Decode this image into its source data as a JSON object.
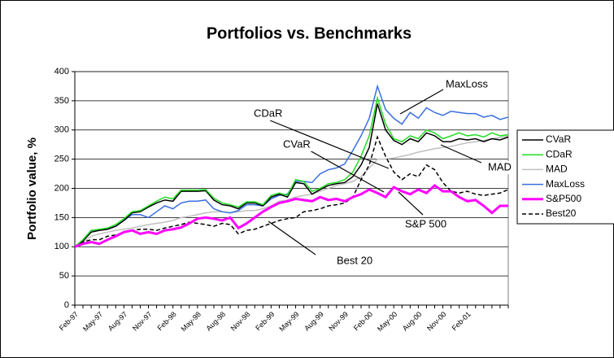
{
  "chart_data": {
    "type": "line",
    "title": "Portfolios vs. Benchmarks",
    "y_label": "Portfolio value, %",
    "categories": [
      "Feb-97",
      null,
      null,
      "May-97",
      null,
      null,
      "Aug-97",
      null,
      null,
      "Nov-97",
      null,
      null,
      "Feb-98",
      null,
      null,
      "May-98",
      null,
      null,
      "Aug-98",
      null,
      null,
      "Nov-98",
      null,
      null,
      "Feb-99",
      null,
      null,
      "May-99",
      null,
      null,
      "Aug-99",
      null,
      null,
      "Nov-99",
      null,
      null,
      "Feb-00",
      null,
      null,
      "May-00",
      null,
      null,
      "Aug-00",
      null,
      null,
      "Nov-00",
      null,
      null,
      "Feb-01",
      null,
      null,
      null,
      null,
      null
    ],
    "series": [
      {
        "name": "CVaR",
        "color": "#000000",
        "values": [
          100,
          110,
          125,
          128,
          130,
          135,
          145,
          158,
          160,
          168,
          175,
          180,
          178,
          195,
          195,
          195,
          196,
          180,
          172,
          170,
          165,
          175,
          175,
          170,
          185,
          190,
          185,
          210,
          208,
          190,
          198,
          205,
          208,
          210,
          220,
          240,
          270,
          345,
          300,
          282,
          275,
          285,
          280,
          295,
          290,
          280,
          280,
          285,
          283,
          285,
          280,
          285,
          283,
          288
        ]
      },
      {
        "name": "CDaR",
        "color": "#22dd22",
        "values": [
          100,
          112,
          128,
          130,
          132,
          138,
          148,
          160,
          162,
          170,
          178,
          185,
          182,
          197,
          197,
          197,
          198,
          183,
          175,
          172,
          168,
          177,
          177,
          172,
          188,
          192,
          188,
          215,
          212,
          195,
          200,
          208,
          210,
          215,
          228,
          255,
          290,
          355,
          310,
          285,
          280,
          290,
          285,
          300,
          295,
          285,
          290,
          295,
          290,
          292,
          288,
          295,
          290,
          292
        ]
      },
      {
        "name": "MAD",
        "color": "#c0c0c0",
        "values": [
          100,
          108,
          118,
          122,
          125,
          128,
          130,
          132,
          135,
          138,
          140,
          142,
          145,
          150,
          152,
          155,
          158,
          160,
          160,
          158,
          160,
          162,
          162,
          165,
          170,
          178,
          180,
          185,
          188,
          190,
          195,
          200,
          205,
          208,
          212,
          220,
          235,
          250,
          250,
          252,
          255,
          258,
          262,
          265,
          268,
          270,
          272,
          275,
          278,
          280,
          282,
          285,
          287,
          290
        ]
      },
      {
        "name": "MaxLoss",
        "color": "#3a6ee0",
        "values": [
          100,
          112,
          128,
          128,
          130,
          135,
          145,
          155,
          155,
          150,
          160,
          170,
          165,
          175,
          178,
          178,
          180,
          165,
          160,
          158,
          162,
          172,
          172,
          170,
          182,
          188,
          190,
          212,
          212,
          210,
          225,
          232,
          235,
          242,
          265,
          290,
          320,
          375,
          335,
          320,
          310,
          330,
          320,
          338,
          330,
          325,
          332,
          330,
          328,
          328,
          322,
          325,
          318,
          322
        ]
      },
      {
        "name": "S&P500",
        "color": "#ff00ff",
        "line_width": 3,
        "values": [
          100,
          105,
          108,
          105,
          112,
          118,
          125,
          128,
          122,
          125,
          122,
          128,
          130,
          133,
          140,
          148,
          150,
          148,
          145,
          150,
          132,
          140,
          150,
          160,
          168,
          175,
          178,
          182,
          180,
          178,
          185,
          180,
          182,
          178,
          185,
          190,
          198,
          192,
          185,
          202,
          195,
          190,
          198,
          192,
          205,
          195,
          195,
          185,
          178,
          180,
          170,
          158,
          170,
          170
        ]
      },
      {
        "name": "Best20",
        "color": "#000000",
        "dashed": true,
        "values": [
          100,
          108,
          112,
          112,
          118,
          120,
          125,
          128,
          130,
          130,
          128,
          132,
          135,
          138,
          142,
          140,
          138,
          135,
          140,
          138,
          122,
          128,
          130,
          135,
          140,
          145,
          148,
          150,
          160,
          162,
          165,
          170,
          172,
          175,
          185,
          215,
          240,
          288,
          255,
          228,
          215,
          225,
          220,
          240,
          232,
          210,
          195,
          192,
          195,
          190,
          188,
          190,
          192,
          198
        ]
      }
    ],
    "annotations": [
      "MaxLoss",
      "CDaR",
      "CVaR",
      "MAD",
      "S&P 500",
      "Best 20"
    ],
    "ylim": [
      0,
      400
    ],
    "yticks": [
      0,
      50,
      100,
      150,
      200,
      250,
      300,
      350,
      400
    ],
    "grid": true,
    "legend": "right"
  }
}
